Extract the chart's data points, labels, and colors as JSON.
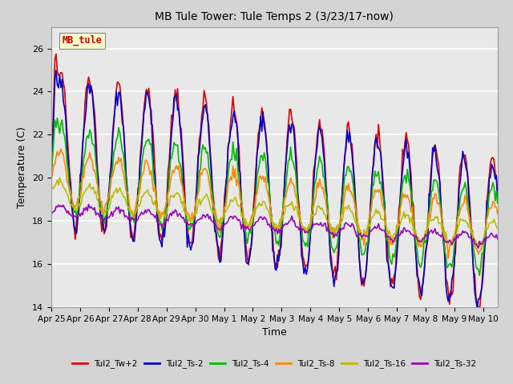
{
  "title": "MB Tule Tower: Tule Temps 2 (3/23/17-now)",
  "xlabel": "Time",
  "ylabel": "Temperature (C)",
  "ylim": [
    14,
    27
  ],
  "yticks": [
    14,
    16,
    18,
    20,
    22,
    24,
    26
  ],
  "series_labels": [
    "Tul2_Tw+2",
    "Tul2_Ts-2",
    "Tul2_Ts-4",
    "Tul2_Ts-8",
    "Tul2_Ts-16",
    "Tul2_Ts-32"
  ],
  "series_colors": [
    "#dd0000",
    "#0000cc",
    "#00bb00",
    "#ff8800",
    "#bbbb00",
    "#9900bb"
  ],
  "xtick_labels": [
    "Apr 25",
    "Apr 26",
    "Apr 27",
    "Apr 28",
    "Apr 29",
    "Apr 30",
    "May 1",
    "May 2",
    "May 3",
    "May 4",
    "May 5",
    "May 6",
    "May 7",
    "May 8",
    "May 9",
    "May 10"
  ],
  "watermark_text": "MB_tule",
  "watermark_color": "#cc0000",
  "watermark_bg": "#ffffcc",
  "fig_bg_color": "#d4d4d4",
  "plot_bg_color": "#e8e8e8",
  "line_width": 1.2,
  "n_days": 15.5,
  "points_per_day": 24,
  "title_fontsize": 10,
  "axis_fontsize": 9,
  "tick_fontsize": 8,
  "legend_fontsize": 8
}
